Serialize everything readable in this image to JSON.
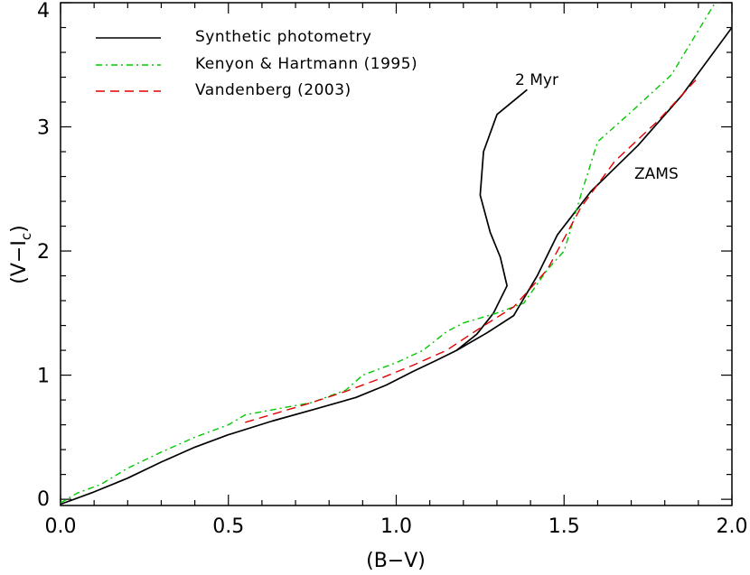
{
  "chart_data": {
    "type": "line",
    "title": "",
    "xlabel": "(B−V)",
    "ylabel_main": "(V−I",
    "ylabel_sub": "c",
    "ylabel_close": ")",
    "xlim": [
      0.0,
      2.0
    ],
    "ylim": [
      -0.05,
      4.0
    ],
    "x_ticks": [
      {
        "value": 0.0,
        "label": "0.0"
      },
      {
        "value": 0.5,
        "label": "0.5"
      },
      {
        "value": 1.0,
        "label": "1.0"
      },
      {
        "value": 1.5,
        "label": "1.5"
      },
      {
        "value": 2.0,
        "label": "2.0"
      }
    ],
    "y_ticks": [
      {
        "value": 0,
        "label": "0"
      },
      {
        "value": 1,
        "label": "1"
      },
      {
        "value": 2,
        "label": "2"
      },
      {
        "value": 3,
        "label": "3"
      },
      {
        "value": 4,
        "label": "4"
      }
    ],
    "series": [
      {
        "name": "Synthetic photometry (ZAMS)",
        "style": "solid",
        "color": "#000000",
        "x": [
          0.0,
          0.1,
          0.2,
          0.3,
          0.4,
          0.5,
          0.63,
          0.75,
          0.88,
          0.97,
          1.05,
          1.12,
          1.18,
          1.27,
          1.35,
          1.42,
          1.48,
          1.58,
          1.72,
          1.85,
          2.0
        ],
        "y": [
          -0.04,
          0.06,
          0.17,
          0.3,
          0.42,
          0.52,
          0.63,
          0.72,
          0.82,
          0.92,
          1.03,
          1.12,
          1.2,
          1.34,
          1.48,
          1.8,
          2.13,
          2.48,
          2.85,
          3.25,
          3.8
        ]
      },
      {
        "name": "Synthetic photometry (2 Myr)",
        "style": "solid",
        "color": "#000000",
        "x": [
          1.18,
          1.24,
          1.29,
          1.33,
          1.31,
          1.28,
          1.25,
          1.26,
          1.3,
          1.39
        ],
        "y": [
          1.2,
          1.33,
          1.5,
          1.72,
          1.95,
          2.15,
          2.45,
          2.8,
          3.1,
          3.3
        ]
      },
      {
        "name": "Kenyon & Hartmann (1995)",
        "style": "dash-dot",
        "color": "#00c800",
        "x": [
          0.0,
          0.05,
          0.12,
          0.2,
          0.3,
          0.4,
          0.5,
          0.55,
          0.65,
          0.75,
          0.85,
          0.9,
          1.0,
          1.08,
          1.15,
          1.2,
          1.3,
          1.38,
          1.45,
          1.5,
          1.55,
          1.6,
          1.7,
          1.82,
          1.95
        ],
        "y": [
          -0.03,
          0.05,
          0.12,
          0.25,
          0.38,
          0.5,
          0.6,
          0.68,
          0.73,
          0.78,
          0.88,
          1.0,
          1.1,
          1.2,
          1.35,
          1.42,
          1.5,
          1.58,
          1.85,
          2.0,
          2.45,
          2.88,
          3.12,
          3.42,
          4.0
        ]
      },
      {
        "name": "Vandenberg (2003)",
        "style": "dashed",
        "color": "#e00000",
        "x": [
          0.55,
          0.65,
          0.75,
          0.85,
          0.95,
          1.05,
          1.15,
          1.25,
          1.35,
          1.45,
          1.55,
          1.65,
          1.78,
          1.9
        ],
        "y": [
          0.62,
          0.7,
          0.78,
          0.87,
          0.97,
          1.08,
          1.2,
          1.38,
          1.55,
          1.85,
          2.35,
          2.72,
          3.05,
          3.4
        ]
      }
    ],
    "legend": {
      "position": "top-left",
      "entries": [
        {
          "label": "Synthetic photometry",
          "style": "solid",
          "color": "#000000"
        },
        {
          "label": "Kenyon & Hartmann (1995)",
          "style": "dash-dot",
          "color": "#00c800"
        },
        {
          "label": "Vandenberg (2003)",
          "style": "dashed",
          "color": "#e00000"
        }
      ]
    },
    "annotations": [
      {
        "text": "2 Myr",
        "x": 1.37,
        "y": 3.33
      },
      {
        "text": "ZAMS",
        "x": 1.73,
        "y": 2.68
      }
    ]
  }
}
